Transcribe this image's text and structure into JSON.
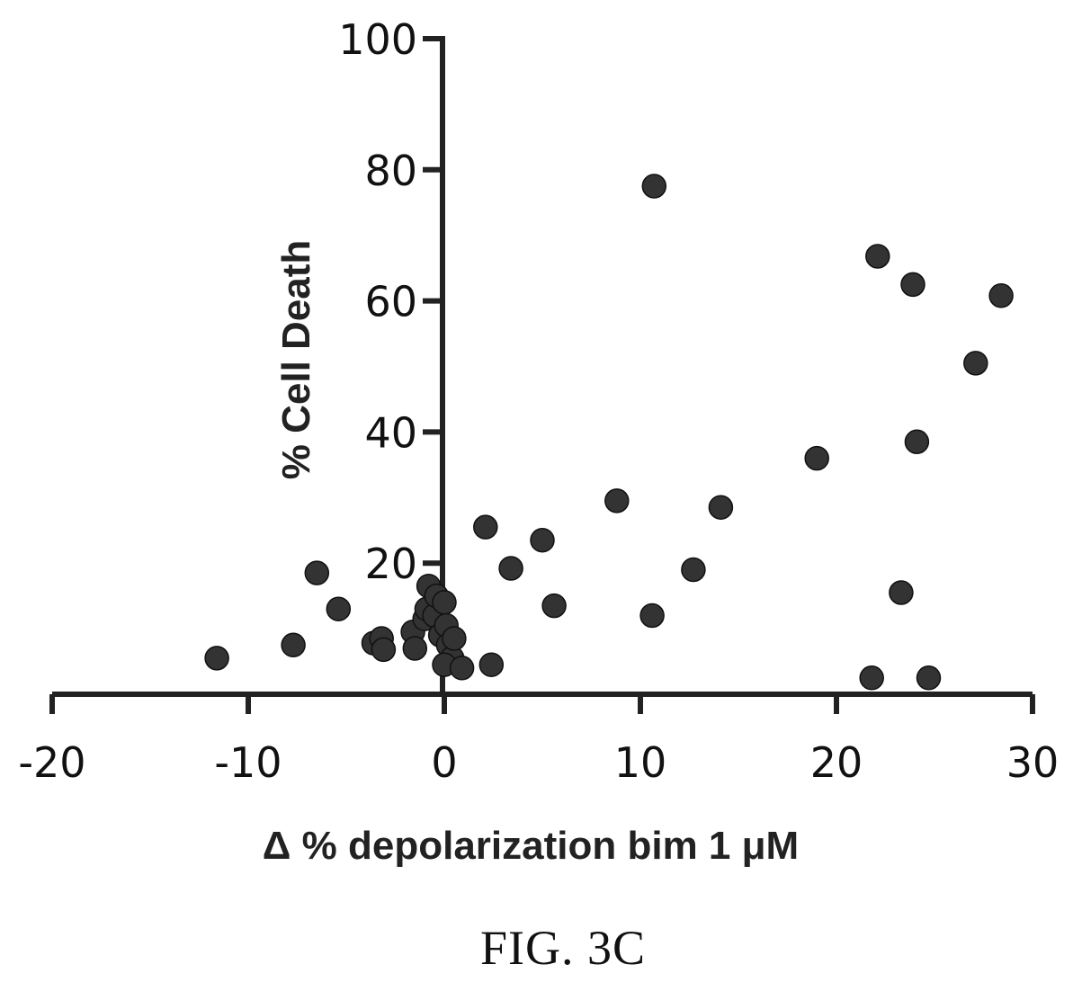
{
  "chart_data": {
    "type": "scatter",
    "title": "",
    "xlabel": "Δ % depolarization bim 1 μM",
    "ylabel": "% Cell Death",
    "xlim": [
      -20,
      30
    ],
    "ylim": [
      0,
      100
    ],
    "x_ticks": [
      "-20",
      "-10",
      "0",
      "10",
      "20",
      "30"
    ],
    "y_ticks": [
      "20",
      "40",
      "60",
      "80",
      "100"
    ],
    "grid": false,
    "legend": "none",
    "marker_color": "#333333",
    "series": [
      {
        "points": [
          {
            "x": -11.6,
            "y": 5.5
          },
          {
            "x": -7.7,
            "y": 7.5
          },
          {
            "x": -6.5,
            "y": 18.5
          },
          {
            "x": -5.4,
            "y": 13.0
          },
          {
            "x": -3.6,
            "y": 7.8
          },
          {
            "x": -3.2,
            "y": 8.5
          },
          {
            "x": -3.1,
            "y": 6.8
          },
          {
            "x": -1.6,
            "y": 9.5
          },
          {
            "x": -1.5,
            "y": 7.0
          },
          {
            "x": -1.0,
            "y": 11.5
          },
          {
            "x": -0.9,
            "y": 13.0
          },
          {
            "x": -0.8,
            "y": 16.5
          },
          {
            "x": -0.5,
            "y": 12.0
          },
          {
            "x": -0.4,
            "y": 15.0
          },
          {
            "x": -0.2,
            "y": 9.0
          },
          {
            "x": 0.0,
            "y": 14.0
          },
          {
            "x": 0.1,
            "y": 10.5
          },
          {
            "x": 0.2,
            "y": 7.5
          },
          {
            "x": 0.4,
            "y": 5.5
          },
          {
            "x": 0.5,
            "y": 8.5
          },
          {
            "x": 0.0,
            "y": 4.5
          },
          {
            "x": 0.9,
            "y": 4.0
          },
          {
            "x": 2.1,
            "y": 25.5
          },
          {
            "x": 2.4,
            "y": 4.5
          },
          {
            "x": 3.4,
            "y": 19.2
          },
          {
            "x": 5.0,
            "y": 23.5
          },
          {
            "x": 5.6,
            "y": 13.5
          },
          {
            "x": 8.8,
            "y": 29.5
          },
          {
            "x": 10.6,
            "y": 12.0
          },
          {
            "x": 10.7,
            "y": 77.5
          },
          {
            "x": 12.7,
            "y": 19.0
          },
          {
            "x": 14.1,
            "y": 28.5
          },
          {
            "x": 19.0,
            "y": 36.0
          },
          {
            "x": 21.8,
            "y": 2.5
          },
          {
            "x": 22.1,
            "y": 66.8
          },
          {
            "x": 23.3,
            "y": 15.5
          },
          {
            "x": 23.9,
            "y": 62.5
          },
          {
            "x": 24.1,
            "y": 38.5
          },
          {
            "x": 24.7,
            "y": 2.5
          },
          {
            "x": 27.1,
            "y": 50.5
          },
          {
            "x": 28.4,
            "y": 60.8
          }
        ]
      }
    ]
  },
  "figure_caption": "FIG. 3C"
}
